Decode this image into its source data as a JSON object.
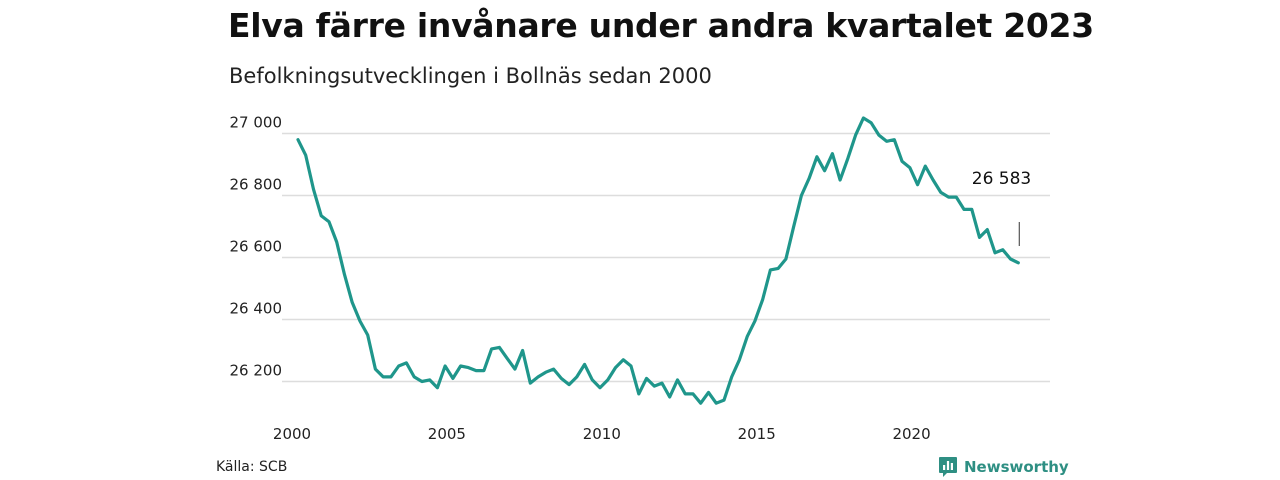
{
  "title": "Elva färre invånare under andra kvartalet 2023",
  "subtitle": "Befolkningsutvecklingen i Bollnäs sedan 2000",
  "source": "Källa: SCB",
  "brand": {
    "name": "Newsworthy",
    "icon": "newsworthy-logo-icon"
  },
  "colors": {
    "line": "#1f968b",
    "grid": "#dddddd",
    "brand": "#2e8f83"
  },
  "chart_data": {
    "type": "line",
    "title": "Elva färre invånare under andra kvartalet 2023",
    "subtitle": "Befolkningsutvecklingen i Bollnäs sedan 2000",
    "xlabel": "",
    "ylabel": "",
    "xlim": [
      2000,
      2023.5
    ],
    "ylim": [
      26150,
      27050
    ],
    "x_ticks": [
      2000,
      2005,
      2010,
      2015,
      2020
    ],
    "x_tick_labels": [
      "2000",
      "2005",
      "2010",
      "2015",
      "2020"
    ],
    "y_ticks": [
      26200,
      26400,
      26600,
      26800,
      27000
    ],
    "y_tick_labels": [
      "26 200",
      "26 400",
      "26 600",
      "26 800",
      "27 000"
    ],
    "grid": true,
    "legend": "none",
    "end_label": {
      "x": 2023.25,
      "value": 26583,
      "text": "26 583"
    },
    "series": [
      {
        "x": [
          2000.0,
          2000.25,
          2000.5,
          2000.75,
          2001.0,
          2001.25,
          2001.5,
          2001.75,
          2002.0,
          2002.25,
          2002.5,
          2002.75,
          2003.0,
          2003.25,
          2003.5,
          2003.75,
          2004.0,
          2004.25,
          2004.5,
          2004.75,
          2005.0,
          2005.25,
          2005.5,
          2005.75,
          2006.0,
          2006.25,
          2006.5,
          2006.75,
          2007.0,
          2007.25,
          2007.5,
          2007.75,
          2008.0,
          2008.25,
          2008.5,
          2008.75,
          2009.0,
          2009.25,
          2009.5,
          2009.75,
          2010.0,
          2010.25,
          2010.5,
          2010.75,
          2011.0,
          2011.25,
          2011.5,
          2011.75,
          2012.0,
          2012.25,
          2012.5,
          2012.75,
          2013.0,
          2013.25,
          2013.5,
          2013.75,
          2014.0,
          2014.25,
          2014.5,
          2014.75,
          2015.0,
          2015.25,
          2015.5,
          2015.75,
          2016.0,
          2016.25,
          2016.5,
          2016.75,
          2017.0,
          2017.25,
          2017.5,
          2017.75,
          2018.0,
          2018.25,
          2018.5,
          2018.75,
          2019.0,
          2019.25,
          2019.5,
          2019.75,
          2020.0,
          2020.25,
          2020.5,
          2020.75,
          2021.0,
          2021.25,
          2021.5,
          2021.75,
          2022.0,
          2022.25,
          2022.5,
          2022.75,
          2023.0,
          2023.25
        ],
        "values": [
          26980,
          26930,
          26820,
          26735,
          26715,
          26650,
          26545,
          26455,
          26395,
          26350,
          26240,
          26215,
          26215,
          26250,
          26260,
          26215,
          26200,
          26205,
          26180,
          26250,
          26210,
          26250,
          26245,
          26235,
          26235,
          26305,
          26310,
          26275,
          26240,
          26300,
          26195,
          26215,
          26230,
          26240,
          26210,
          26190,
          26215,
          26255,
          26205,
          26180,
          26205,
          26245,
          26270,
          26250,
          26160,
          26210,
          26185,
          26195,
          26150,
          26205,
          26160,
          26160,
          26130,
          26165,
          26130,
          26140,
          26215,
          26270,
          26345,
          26395,
          26465,
          26560,
          26565,
          26595,
          26700,
          26800,
          26855,
          26925,
          26880,
          26935,
          26850,
          26920,
          26995,
          27050,
          27035,
          26995,
          26975,
          26980,
          26910,
          26890,
          26835,
          26895,
          26850,
          26810,
          26795,
          26795,
          26755,
          26755,
          26665,
          26690,
          26615,
          26625,
          26595,
          26583
        ]
      }
    ]
  }
}
